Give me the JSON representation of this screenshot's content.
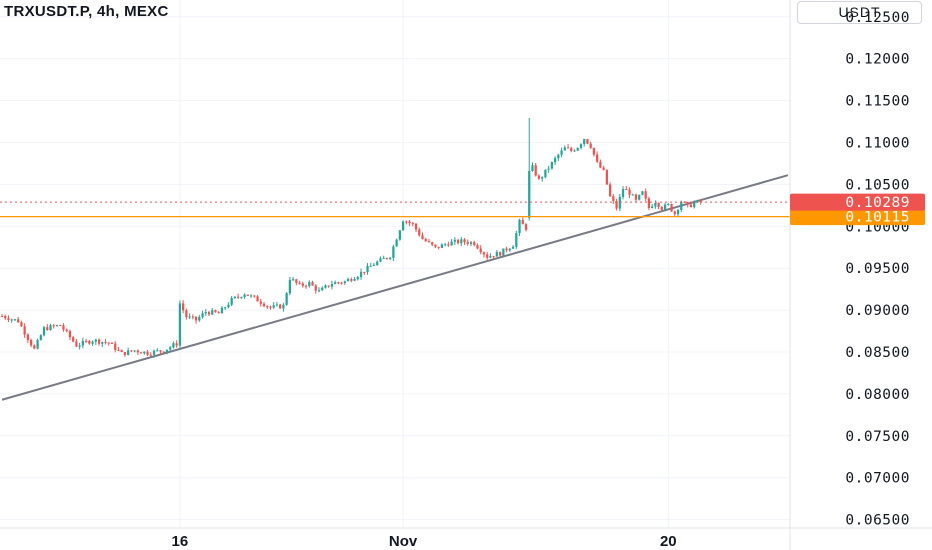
{
  "header": {
    "title": "TRXUSDT.P, 4h, MEXC",
    "unit": "USDT"
  },
  "colors": {
    "up": "#26a69a",
    "down": "#ef5350",
    "grid": "#f0f3fa",
    "trendline": "#787b86",
    "support_line": "#ff9800",
    "last_price_bg": "#ef5350",
    "support_bg": "#ff9800"
  },
  "chart_data": {
    "type": "candlestick",
    "title": "TRXUSDT.P, 4h, MEXC",
    "ylabel": "USDT",
    "ylim": [
      0.064,
      0.127
    ],
    "y_ticks": [
      "0.12500",
      "0.12000",
      "0.11500",
      "0.11000",
      "0.10500",
      "0.10000",
      "0.09500",
      "0.09000",
      "0.08500",
      "0.08000",
      "0.07500",
      "0.07000",
      "0.06500"
    ],
    "y_tick_values": [
      0.125,
      0.12,
      0.115,
      0.11,
      0.105,
      0.1,
      0.095,
      0.09,
      0.085,
      0.08,
      0.075,
      0.07,
      0.065
    ],
    "x_ticks": [
      {
        "label": "16",
        "bar": 55
      },
      {
        "label": "Nov",
        "bar": 124
      },
      {
        "label": "20",
        "bar": 206
      }
    ],
    "bar_range": [
      0,
      243
    ],
    "close_path": [
      [
        0,
        0.0893
      ],
      [
        5,
        0.0887
      ],
      [
        10,
        0.0853
      ],
      [
        13,
        0.0878
      ],
      [
        18,
        0.0882
      ],
      [
        23,
        0.0858
      ],
      [
        28,
        0.0864
      ],
      [
        33,
        0.0861
      ],
      [
        37,
        0.0848
      ],
      [
        41,
        0.0852
      ],
      [
        45,
        0.0849
      ],
      [
        50,
        0.0852
      ],
      [
        54,
        0.086
      ],
      [
        55,
        0.0908
      ],
      [
        57,
        0.0892
      ],
      [
        60,
        0.0888
      ],
      [
        63,
        0.0898
      ],
      [
        67,
        0.0896
      ],
      [
        71,
        0.0912
      ],
      [
        75,
        0.092
      ],
      [
        79,
        0.0912
      ],
      [
        83,
        0.0903
      ],
      [
        87,
        0.0905
      ],
      [
        89,
        0.0938
      ],
      [
        92,
        0.0929
      ],
      [
        95,
        0.0932
      ],
      [
        98,
        0.0922
      ],
      [
        102,
        0.0932
      ],
      [
        106,
        0.0934
      ],
      [
        110,
        0.0942
      ],
      [
        115,
        0.0955
      ],
      [
        120,
        0.0965
      ],
      [
        124,
        0.1008
      ],
      [
        127,
        0.1002
      ],
      [
        130,
        0.0985
      ],
      [
        134,
        0.0974
      ],
      [
        138,
        0.098
      ],
      [
        142,
        0.0982
      ],
      [
        146,
        0.098
      ],
      [
        150,
        0.0964
      ],
      [
        154,
        0.0968
      ],
      [
        158,
        0.0978
      ],
      [
        160,
        0.1005
      ],
      [
        162,
        0.0998
      ],
      [
        163,
        0.1127
      ],
      [
        164,
        0.107
      ],
      [
        166,
        0.1055
      ],
      [
        168,
        0.1065
      ],
      [
        170,
        0.1075
      ],
      [
        172,
        0.1085
      ],
      [
        174,
        0.1093
      ],
      [
        176,
        0.109
      ],
      [
        178,
        0.1095
      ],
      [
        180,
        0.1105
      ],
      [
        182,
        0.1096
      ],
      [
        184,
        0.1075
      ],
      [
        186,
        0.1065
      ],
      [
        188,
        0.1035
      ],
      [
        190,
        0.1022
      ],
      [
        192,
        0.1045
      ],
      [
        194,
        0.104
      ],
      [
        196,
        0.103
      ],
      [
        198,
        0.104
      ],
      [
        200,
        0.1022
      ],
      [
        202,
        0.103
      ],
      [
        204,
        0.1022
      ],
      [
        206,
        0.1025
      ],
      [
        208,
        0.1015
      ],
      [
        210,
        0.103
      ],
      [
        212,
        0.1023
      ],
      [
        214,
        0.1028
      ],
      [
        216,
        0.1029
      ]
    ],
    "trendline": {
      "from": [
        0,
        0.0793
      ],
      "to": [
        243,
        0.1061
      ]
    },
    "horizontal_line": {
      "value": 0.10115,
      "label": "0.10115"
    },
    "last_price": {
      "value": 0.10289,
      "label": "0.10289"
    },
    "grid": true
  }
}
